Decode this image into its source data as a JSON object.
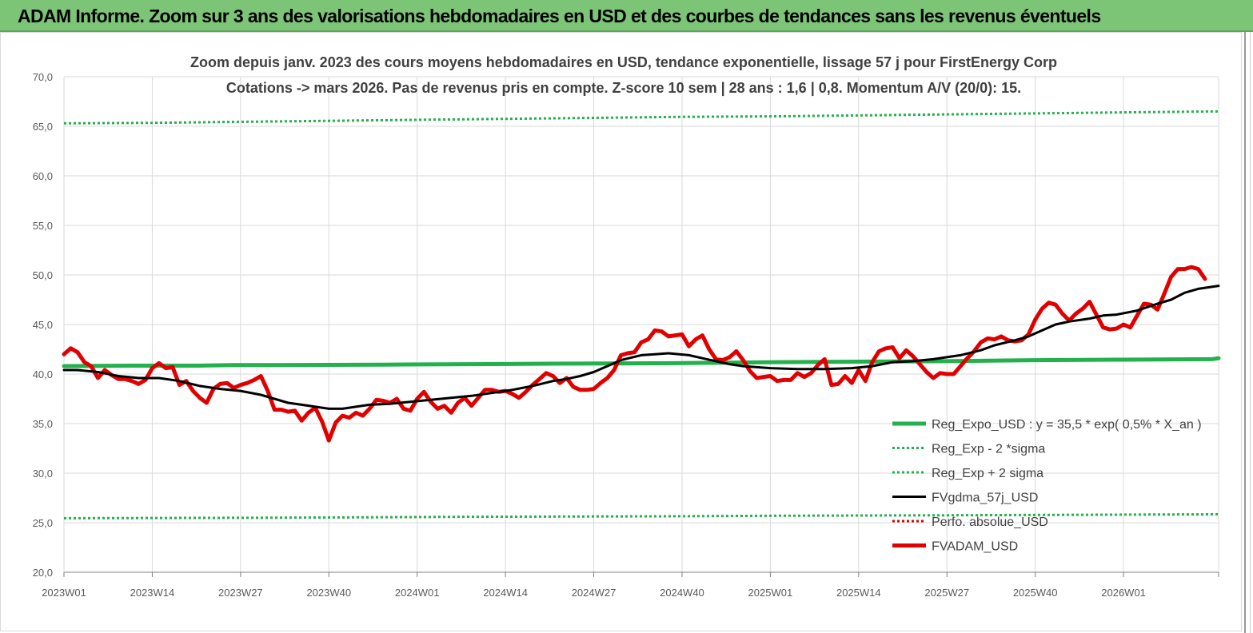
{
  "header": {
    "title": "ADAM Informe. Zoom sur 3 ans des valorisations hebdomadaires en USD et des courbes de tendances sans les revenus éventuels"
  },
  "chart_data": {
    "type": "line",
    "title_line1": "Zoom depuis janv. 2023 des cours moyens hebdomadaires en USD, tendance exponentielle, lissage 57 j pour FirstEnergy Corp",
    "title_line2": "Cotations -> mars 2026. Pas de revenus pris en compte. Z-score 10 sem | 28 ans : 1,6 | 0,8. Momentum A/V (20/0): 15.",
    "ylim": [
      20,
      70
    ],
    "yticks": [
      "20,0",
      "25,0",
      "30,0",
      "35,0",
      "40,0",
      "45,0",
      "50,0",
      "55,0",
      "60,0",
      "65,0",
      "70,0"
    ],
    "x_tick_labels": [
      "2023W01",
      "2023W14",
      "2023W27",
      "2023W40",
      "2024W01",
      "2024W14",
      "2024W27",
      "2024W40",
      "2025W01",
      "2025W14",
      "2025W27",
      "2025W40",
      "2026W01"
    ],
    "x_tick_weeks": [
      0,
      13,
      26,
      39,
      52,
      65,
      78,
      91,
      104,
      117,
      130,
      143,
      156
    ],
    "x_total_weeks": 170,
    "grid": true,
    "legend_position": "bottom-right",
    "series": [
      {
        "name": "Reg_Expo_USD : y = 35,5 * exp( 0,5% *  X_an )",
        "color": "#22b14c",
        "style": "solid-thick",
        "points": [
          [
            0,
            40.8
          ],
          [
            10,
            40.85
          ],
          [
            20,
            40.85
          ],
          [
            25,
            40.9
          ],
          [
            30,
            40.9
          ],
          [
            47,
            40.95
          ],
          [
            60,
            41.0
          ],
          [
            72,
            41.05
          ],
          [
            90,
            41.1
          ],
          [
            105,
            41.2
          ],
          [
            117,
            41.25
          ],
          [
            130,
            41.3
          ],
          [
            143,
            41.4
          ],
          [
            156,
            41.45
          ],
          [
            169,
            41.5
          ],
          [
            170,
            41.6
          ]
        ]
      },
      {
        "name": "Reg_Exp - 2 *sigma",
        "color": "#22b14c",
        "style": "dotted",
        "points": [
          [
            0,
            25.45
          ],
          [
            30,
            25.5
          ],
          [
            60,
            25.6
          ],
          [
            90,
            25.65
          ],
          [
            105,
            25.7
          ],
          [
            130,
            25.75
          ],
          [
            170,
            25.85
          ]
        ]
      },
      {
        "name": "Reg_Exp + 2 sigma",
        "color": "#22b14c",
        "style": "dotted",
        "points": [
          [
            0,
            65.3
          ],
          [
            13,
            65.35
          ],
          [
            26,
            65.45
          ],
          [
            39,
            65.55
          ],
          [
            52,
            65.65
          ],
          [
            65,
            65.75
          ],
          [
            78,
            65.85
          ],
          [
            91,
            65.95
          ],
          [
            104,
            66.0
          ],
          [
            117,
            66.1
          ],
          [
            130,
            66.2
          ],
          [
            143,
            66.3
          ],
          [
            156,
            66.4
          ],
          [
            170,
            66.5
          ]
        ]
      },
      {
        "name": "FVgdma_57j_USD",
        "color": "#000000",
        "style": "solid",
        "points": [
          [
            0,
            40.4
          ],
          [
            2,
            40.4
          ],
          [
            5,
            40.2
          ],
          [
            8,
            39.8
          ],
          [
            11,
            39.6
          ],
          [
            14,
            39.6
          ],
          [
            17,
            39.3
          ],
          [
            20,
            38.8
          ],
          [
            23,
            38.5
          ],
          [
            26,
            38.3
          ],
          [
            29,
            37.9
          ],
          [
            31,
            37.5
          ],
          [
            33,
            37.1
          ],
          [
            35,
            36.9
          ],
          [
            37,
            36.7
          ],
          [
            39,
            36.5
          ],
          [
            41,
            36.5
          ],
          [
            43,
            36.7
          ],
          [
            45,
            36.9
          ],
          [
            48,
            37.0
          ],
          [
            51,
            37.2
          ],
          [
            54,
            37.4
          ],
          [
            57,
            37.6
          ],
          [
            60,
            37.8
          ],
          [
            63,
            38.1
          ],
          [
            66,
            38.4
          ],
          [
            69,
            38.8
          ],
          [
            72,
            39.3
          ],
          [
            74,
            39.5
          ],
          [
            76,
            39.8
          ],
          [
            78,
            40.2
          ],
          [
            80,
            40.8
          ],
          [
            82,
            41.4
          ],
          [
            85,
            41.9
          ],
          [
            87,
            42.0
          ],
          [
            89,
            42.1
          ],
          [
            92,
            41.9
          ],
          [
            94,
            41.6
          ],
          [
            96,
            41.3
          ],
          [
            98,
            41.0
          ],
          [
            100,
            40.8
          ],
          [
            104,
            40.6
          ],
          [
            108,
            40.5
          ],
          [
            112,
            40.5
          ],
          [
            116,
            40.6
          ],
          [
            119,
            40.8
          ],
          [
            122,
            41.2
          ],
          [
            125,
            41.3
          ],
          [
            128,
            41.5
          ],
          [
            132,
            41.9
          ],
          [
            135,
            42.4
          ],
          [
            137,
            42.9
          ],
          [
            140,
            43.4
          ],
          [
            142,
            43.8
          ],
          [
            144,
            44.4
          ],
          [
            146,
            45.0
          ],
          [
            148,
            45.3
          ],
          [
            151,
            45.6
          ],
          [
            153,
            45.9
          ],
          [
            155,
            46.0
          ],
          [
            158,
            46.4
          ],
          [
            161,
            47.1
          ],
          [
            163,
            47.5
          ],
          [
            165,
            48.2
          ],
          [
            167,
            48.6
          ],
          [
            170,
            48.9
          ]
        ]
      },
      {
        "name": "Perfo. absolue_USD",
        "color": "#e00000",
        "style": "dotted",
        "points": []
      },
      {
        "name": "FVADAM_USD",
        "color": "#e00000",
        "style": "solid-thick",
        "points": [
          [
            0,
            42.0
          ],
          [
            1,
            42.6
          ],
          [
            2,
            42.2
          ],
          [
            3,
            41.2
          ],
          [
            4,
            40.8
          ],
          [
            5,
            39.6
          ],
          [
            6,
            40.4
          ],
          [
            7,
            39.9
          ],
          [
            8,
            39.5
          ],
          [
            9,
            39.5
          ],
          [
            10,
            39.3
          ],
          [
            11,
            39.0
          ],
          [
            12,
            39.4
          ],
          [
            13,
            40.6
          ],
          [
            14,
            41.1
          ],
          [
            15,
            40.6
          ],
          [
            16,
            40.7
          ],
          [
            17,
            38.9
          ],
          [
            18,
            39.3
          ],
          [
            19,
            38.3
          ],
          [
            20,
            37.6
          ],
          [
            21,
            37.1
          ],
          [
            22,
            38.5
          ],
          [
            23,
            39.0
          ],
          [
            24,
            39.1
          ],
          [
            25,
            38.6
          ],
          [
            26,
            38.9
          ],
          [
            27,
            39.1
          ],
          [
            28,
            39.4
          ],
          [
            29,
            39.8
          ],
          [
            30,
            38.3
          ],
          [
            31,
            36.4
          ],
          [
            32,
            36.4
          ],
          [
            33,
            36.2
          ],
          [
            34,
            36.3
          ],
          [
            35,
            35.3
          ],
          [
            36,
            36.1
          ],
          [
            37,
            36.6
          ],
          [
            38,
            35.2
          ],
          [
            39,
            33.3
          ],
          [
            40,
            35.1
          ],
          [
            41,
            35.8
          ],
          [
            42,
            35.6
          ],
          [
            43,
            36.1
          ],
          [
            44,
            35.8
          ],
          [
            45,
            36.5
          ],
          [
            46,
            37.4
          ],
          [
            47,
            37.3
          ],
          [
            48,
            37.1
          ],
          [
            49,
            37.5
          ],
          [
            50,
            36.5
          ],
          [
            51,
            36.3
          ],
          [
            52,
            37.5
          ],
          [
            53,
            38.2
          ],
          [
            54,
            37.2
          ],
          [
            55,
            36.5
          ],
          [
            56,
            36.8
          ],
          [
            57,
            36.1
          ],
          [
            58,
            37.1
          ],
          [
            59,
            37.6
          ],
          [
            60,
            36.8
          ],
          [
            61,
            37.6
          ],
          [
            62,
            38.4
          ],
          [
            63,
            38.4
          ],
          [
            64,
            38.2
          ],
          [
            65,
            38.3
          ],
          [
            66,
            38.0
          ],
          [
            67,
            37.6
          ],
          [
            68,
            38.2
          ],
          [
            69,
            38.9
          ],
          [
            70,
            39.5
          ],
          [
            71,
            40.1
          ],
          [
            72,
            39.8
          ],
          [
            73,
            39.1
          ],
          [
            74,
            39.6
          ],
          [
            75,
            38.7
          ],
          [
            76,
            38.4
          ],
          [
            77,
            38.4
          ],
          [
            78,
            38.5
          ],
          [
            79,
            39.1
          ],
          [
            80,
            39.6
          ],
          [
            81,
            40.4
          ],
          [
            82,
            41.9
          ],
          [
            83,
            42.1
          ],
          [
            84,
            42.2
          ],
          [
            85,
            43.2
          ],
          [
            86,
            43.5
          ],
          [
            87,
            44.4
          ],
          [
            88,
            44.3
          ],
          [
            89,
            43.8
          ],
          [
            90,
            43.9
          ],
          [
            91,
            44.0
          ],
          [
            92,
            42.8
          ],
          [
            93,
            43.5
          ],
          [
            94,
            43.9
          ],
          [
            95,
            42.5
          ],
          [
            96,
            41.5
          ],
          [
            97,
            41.4
          ],
          [
            98,
            41.7
          ],
          [
            99,
            42.3
          ],
          [
            100,
            41.4
          ],
          [
            101,
            40.3
          ],
          [
            102,
            39.6
          ],
          [
            103,
            39.7
          ],
          [
            104,
            39.8
          ],
          [
            105,
            39.3
          ],
          [
            106,
            39.4
          ],
          [
            107,
            39.4
          ],
          [
            108,
            40.1
          ],
          [
            109,
            39.7
          ],
          [
            110,
            40.1
          ],
          [
            111,
            40.9
          ],
          [
            112,
            41.5
          ],
          [
            113,
            38.9
          ],
          [
            114,
            39.0
          ],
          [
            115,
            39.8
          ],
          [
            116,
            39.1
          ],
          [
            117,
            40.4
          ],
          [
            118,
            39.3
          ],
          [
            119,
            41.2
          ],
          [
            120,
            42.3
          ],
          [
            121,
            42.6
          ],
          [
            122,
            42.7
          ],
          [
            123,
            41.6
          ],
          [
            124,
            42.4
          ],
          [
            125,
            41.8
          ],
          [
            126,
            41.0
          ],
          [
            127,
            40.2
          ],
          [
            128,
            39.6
          ],
          [
            129,
            40.1
          ],
          [
            130,
            40.0
          ],
          [
            131,
            40.0
          ],
          [
            132,
            40.8
          ],
          [
            133,
            41.6
          ],
          [
            134,
            42.3
          ],
          [
            135,
            43.2
          ],
          [
            136,
            43.6
          ],
          [
            137,
            43.5
          ],
          [
            138,
            43.8
          ],
          [
            139,
            43.4
          ],
          [
            140,
            43.3
          ],
          [
            141,
            43.4
          ],
          [
            142,
            44.0
          ],
          [
            143,
            45.5
          ],
          [
            144,
            46.6
          ],
          [
            145,
            47.2
          ],
          [
            146,
            47.0
          ],
          [
            147,
            46.1
          ],
          [
            148,
            45.4
          ],
          [
            149,
            46.1
          ],
          [
            150,
            46.6
          ],
          [
            151,
            47.3
          ],
          [
            152,
            46.0
          ],
          [
            153,
            44.7
          ],
          [
            154,
            44.5
          ],
          [
            155,
            44.6
          ],
          [
            156,
            45.0
          ],
          [
            157,
            44.7
          ],
          [
            158,
            45.9
          ],
          [
            159,
            47.1
          ],
          [
            160,
            47.0
          ],
          [
            161,
            46.5
          ],
          [
            162,
            48.1
          ],
          [
            163,
            49.8
          ],
          [
            164,
            50.6
          ],
          [
            165,
            50.6
          ],
          [
            166,
            50.8
          ],
          [
            167,
            50.6
          ],
          [
            168,
            49.6
          ]
        ]
      }
    ]
  }
}
